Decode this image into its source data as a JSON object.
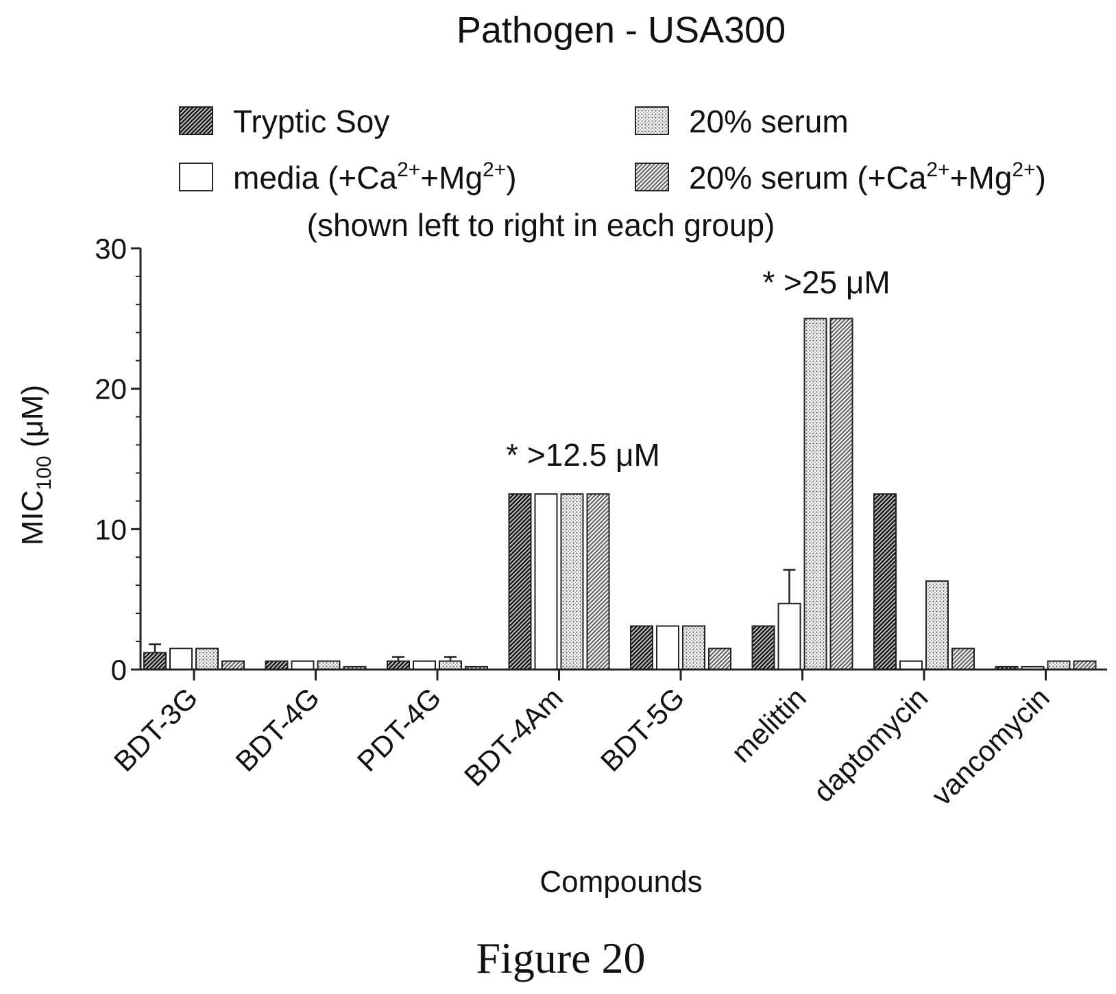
{
  "chart_data": {
    "type": "bar",
    "title": "Pathogen - USA300",
    "xlabel": "Compounds",
    "ylabel": "MIC",
    "ylabel_subscript": "100",
    "ylabel_unit": " (μM)",
    "ylim": [
      0,
      30
    ],
    "yticks": [
      "0",
      "10",
      "20",
      "30"
    ],
    "grid": false,
    "legend_position": "top",
    "legend_note": "(shown left to right in each group)",
    "categories": [
      "BDT-3G",
      "BDT-4G",
      "PDT-4G",
      "BDT-4Am",
      "BDT-5G",
      "melittin",
      "daptomycin",
      "vancomycin"
    ],
    "series": [
      {
        "name": "Tryptic Soy",
        "name_parts": [],
        "pattern": "diag-dark",
        "values": [
          1.2,
          0.6,
          0.6,
          12.5,
          3.1,
          3.1,
          12.5,
          0.2
        ],
        "errors": [
          0.6,
          0,
          0.3,
          0,
          0,
          0,
          0,
          0
        ]
      },
      {
        "name": "media (+Ca2++Mg2+)",
        "name_parts": [
          "media (+Ca",
          "2+",
          "+Mg",
          "2+",
          ")"
        ],
        "pattern": "white",
        "values": [
          1.5,
          0.6,
          0.6,
          12.5,
          3.1,
          4.7,
          0.6,
          0.2
        ],
        "errors": [
          0,
          0,
          0,
          0,
          0,
          2.4,
          0,
          0
        ]
      },
      {
        "name": "20% serum",
        "name_parts": [],
        "pattern": "dots",
        "values": [
          1.5,
          0.6,
          0.6,
          12.5,
          3.1,
          25,
          6.3,
          0.6
        ],
        "errors": [
          0,
          0,
          0.3,
          0,
          0,
          0,
          0,
          0
        ]
      },
      {
        "name": "20% serum (+Ca2++Mg2+)",
        "name_parts": [
          "20% serum (+Ca",
          "2+",
          "+Mg",
          "2+",
          ")"
        ],
        "pattern": "diag-light",
        "values": [
          0.6,
          0.2,
          0.2,
          12.5,
          1.5,
          25,
          1.5,
          0.6
        ],
        "errors": [
          0,
          0,
          0,
          0,
          0,
          0,
          0,
          0
        ]
      }
    ],
    "annotations": [
      {
        "text": "* >12.5 μM",
        "category": "BDT-4Am",
        "y": 14.5
      },
      {
        "text": "* >25 μM",
        "category": "melittin",
        "y": 26.8
      }
    ]
  },
  "caption": "Figure 20"
}
